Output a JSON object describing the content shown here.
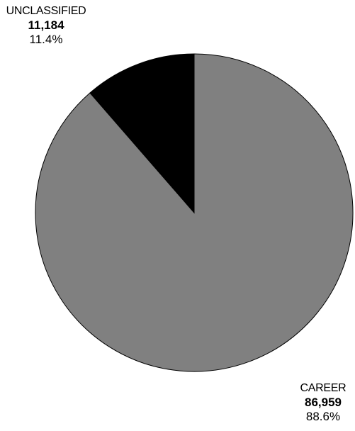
{
  "chart_data": {
    "type": "pie",
    "title": "",
    "slices": [
      {
        "label": "CAREER",
        "value": 86959,
        "value_text": "86,959",
        "percent_text": "88.6%",
        "color": "#808080"
      },
      {
        "label": "UNCLASSIFIED",
        "value": 11184,
        "value_text": "11,184",
        "percent_text": "11.4%",
        "color": "#000000"
      }
    ],
    "start_angle_deg": 0,
    "direction": "clockwise",
    "outline_color": "#000000",
    "legend": "none"
  }
}
